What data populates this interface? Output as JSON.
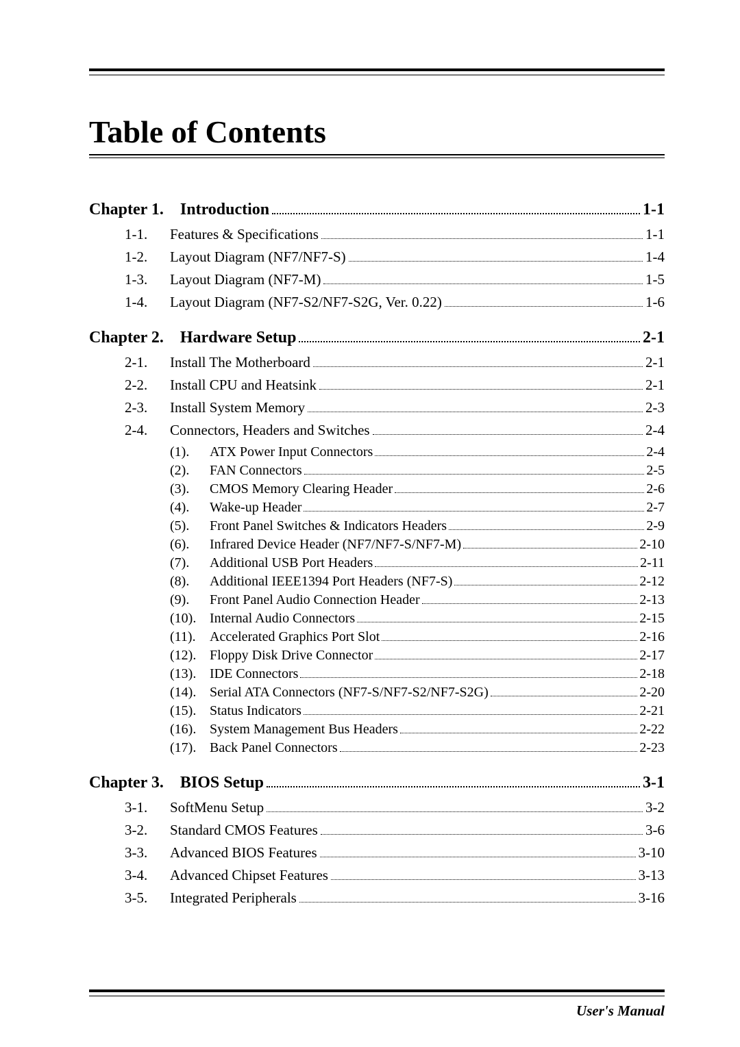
{
  "title": "Table of Contents",
  "footer": "User's Manual",
  "chapters": [
    {
      "label": "Chapter 1.",
      "title": "Introduction",
      "page": "1-1",
      "sections": [
        {
          "num": "1-1.",
          "title": "Features & Specifications",
          "page": "1-1"
        },
        {
          "num": "1-2.",
          "title": "Layout Diagram (NF7/NF7-S)",
          "page": "1-4"
        },
        {
          "num": "1-3.",
          "title": "Layout Diagram (NF7-M)",
          "page": "1-5"
        },
        {
          "num": "1-4.",
          "title": "Layout Diagram (NF7-S2/NF7-S2G, Ver. 0.22)",
          "page": "1-6"
        }
      ]
    },
    {
      "label": "Chapter 2.",
      "title": "Hardware Setup",
      "page": "2-1",
      "sections": [
        {
          "num": "2-1.",
          "title": "Install The Motherboard",
          "page": "2-1"
        },
        {
          "num": "2-2.",
          "title": "Install CPU and Heatsink",
          "page": "2-1"
        },
        {
          "num": "2-3.",
          "title": "Install System Memory",
          "page": "2-3"
        },
        {
          "num": "2-4.",
          "title": "Connectors, Headers and Switches",
          "page": "2-4",
          "subs": [
            {
              "num": "(1).",
              "title": "ATX Power Input Connectors",
              "page": "2-4"
            },
            {
              "num": "(2).",
              "title": "FAN Connectors",
              "page": "2-5"
            },
            {
              "num": "(3).",
              "title": "CMOS Memory Clearing Header",
              "page": "2-6"
            },
            {
              "num": "(4).",
              "title": "Wake-up Header",
              "page": "2-7"
            },
            {
              "num": "(5).",
              "title": "Front Panel Switches & Indicators Headers",
              "page": "2-9"
            },
            {
              "num": "(6).",
              "title": "Infrared Device Header (NF7/NF7-S/NF7-M)",
              "page": "2-10"
            },
            {
              "num": "(7).",
              "title": "Additional USB Port Headers",
              "page": "2-11"
            },
            {
              "num": "(8).",
              "title": "Additional IEEE1394 Port Headers (NF7-S)",
              "page": "2-12"
            },
            {
              "num": "(9).",
              "title": "Front Panel Audio Connection Header",
              "page": "2-13"
            },
            {
              "num": "(10).",
              "title": "Internal Audio Connectors",
              "page": "2-15"
            },
            {
              "num": "(11).",
              "title": "Accelerated Graphics Port Slot",
              "page": "2-16"
            },
            {
              "num": "(12).",
              "title": "Floppy Disk Drive Connector",
              "page": "2-17"
            },
            {
              "num": "(13).",
              "title": "IDE Connectors",
              "page": "2-18"
            },
            {
              "num": "(14).",
              "title": "Serial ATA Connectors (NF7-S/NF7-S2/NF7-S2G)",
              "page": "2-20"
            },
            {
              "num": "(15).",
              "title": "Status Indicators",
              "page": "2-21"
            },
            {
              "num": "(16).",
              "title": "System Management Bus Headers",
              "page": "2-22"
            },
            {
              "num": "(17).",
              "title": "Back Panel Connectors",
              "page": "2-23"
            }
          ]
        }
      ]
    },
    {
      "label": "Chapter 3.",
      "title": "BIOS Setup",
      "page": "3-1",
      "sections": [
        {
          "num": "3-1.",
          "title": "SoftMenu Setup",
          "page": "3-2"
        },
        {
          "num": "3-2.",
          "title": "Standard CMOS Features",
          "page": "3-6"
        },
        {
          "num": "3-3.",
          "title": "Advanced BIOS Features",
          "page": "3-10"
        },
        {
          "num": "3-4.",
          "title": "Advanced Chipset Features",
          "page": "3-13"
        },
        {
          "num": "3-5.",
          "title": "Integrated Peripherals",
          "page": "3-16"
        }
      ]
    }
  ]
}
